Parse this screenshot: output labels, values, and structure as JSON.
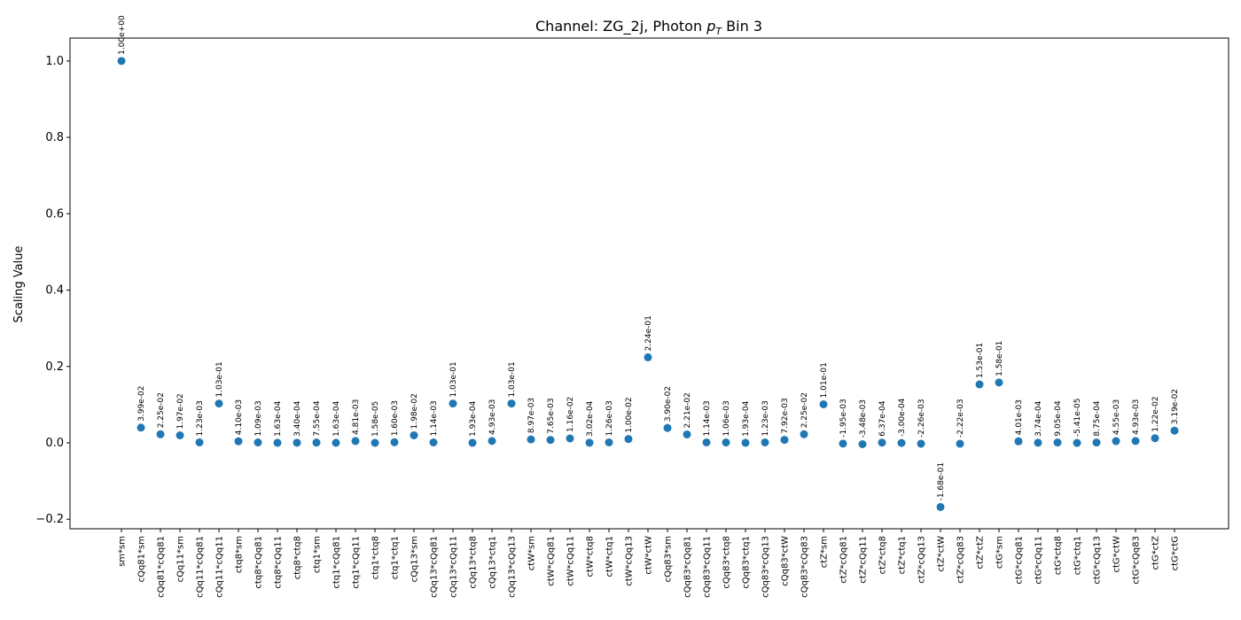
{
  "chart_data": {
    "type": "scatter",
    "title": "Channel: ZG_2j, Photon pT Bin 3",
    "title_parts": {
      "prefix": "Channel: ZG_2j, Photon ",
      "p": "p",
      "sub": "T",
      "suffix": " Bin 3"
    },
    "xlabel": "",
    "ylabel": "Scaling Value",
    "ylim": [
      -0.225,
      1.06
    ],
    "yticks": [
      -0.2,
      0.0,
      0.2,
      0.4,
      0.6,
      0.8,
      1.0
    ],
    "ytick_labels": [
      "−0.2",
      "0.0",
      "0.2",
      "0.4",
      "0.6",
      "0.8",
      "1.0"
    ],
    "grid": false,
    "color": "#1f77b4",
    "categories": [
      "sm*sm",
      "cQq81*sm",
      "cQq81*cQq81",
      "cQq11*sm",
      "cQq11*cQq81",
      "cQq11*cQq11",
      "ctq8*sm",
      "ctq8*cQq81",
      "ctq8*cQq11",
      "ctq8*ctq8",
      "ctq1*sm",
      "ctq1*cQq81",
      "ctq1*cQq11",
      "ctq1*ctq8",
      "ctq1*ctq1",
      "cQq13*sm",
      "cQq13*cQq81",
      "cQq13*cQq11",
      "cQq13*ctq8",
      "cQq13*ctq1",
      "cQq13*cQq13",
      "ctW*sm",
      "ctW*cQq81",
      "ctW*cQq11",
      "ctW*ctq8",
      "ctW*ctq1",
      "ctW*cQq13",
      "ctW*ctW",
      "cQq83*sm",
      "cQq83*cQq81",
      "cQq83*cQq11",
      "cQq83*ctq8",
      "cQq83*ctq1",
      "cQq83*cQq13",
      "cQq83*ctW",
      "cQq83*cQq83",
      "ctZ*sm",
      "ctZ*cQq81",
      "ctZ*cQq11",
      "ctZ*ctq8",
      "ctZ*ctq1",
      "ctZ*cQq13",
      "ctZ*ctW",
      "ctZ*cQq83",
      "ctZ*ctZ",
      "ctG*sm",
      "ctG*cQq81",
      "ctG*cQq11",
      "ctG*ctq8",
      "ctG*ctq1",
      "ctG*cQq13",
      "ctG*ctW",
      "ctG*cQq83",
      "ctG*ctZ",
      "ctG*ctG"
    ],
    "values": [
      1.0,
      0.0399,
      0.0225,
      0.0197,
      0.00123,
      0.103,
      0.0041,
      0.00109,
      0.000163,
      0.00034,
      0.000755,
      0.000163,
      0.00481,
      1.58e-05,
      0.0016,
      0.0198,
      0.00114,
      0.103,
      0.000193,
      0.00493,
      0.103,
      0.00897,
      0.00765,
      0.0116,
      0.000302,
      0.00126,
      0.01,
      0.224,
      0.039,
      0.0221,
      0.00114,
      0.00106,
      0.000193,
      0.00123,
      0.00792,
      0.0225,
      0.101,
      -0.00195,
      -0.00348,
      0.000637,
      -0.0003,
      -0.00226,
      -0.168,
      -0.00222,
      0.153,
      0.158,
      0.00401,
      0.000374,
      0.000905,
      -5.41e-05,
      0.000875,
      0.00455,
      0.00493,
      0.0122,
      0.0319
    ],
    "labels": [
      "1.00e+00",
      "3.99e-02",
      "2.25e-02",
      "1.97e-02",
      "1.23e-03",
      "1.03e-01",
      "4.10e-03",
      "1.09e-03",
      "1.63e-04",
      "3.40e-04",
      "7.55e-04",
      "1.63e-04",
      "4.81e-03",
      "1.58e-05",
      "1.60e-03",
      "1.98e-02",
      "1.14e-03",
      "1.03e-01",
      "1.93e-04",
      "4.93e-03",
      "1.03e-01",
      "8.97e-03",
      "7.65e-03",
      "1.16e-02",
      "3.02e-04",
      "1.26e-03",
      "1.00e-02",
      "2.24e-01",
      "3.90e-02",
      "2.21e-02",
      "1.14e-03",
      "1.06e-03",
      "1.93e-04",
      "1.23e-03",
      "7.92e-03",
      "2.25e-02",
      "1.01e-01",
      "-1.95e-03",
      "-3.48e-03",
      "6.37e-04",
      "-3.00e-04",
      "-2.26e-03",
      "-1.68e-01",
      "-2.22e-03",
      "1.53e-01",
      "1.58e-01",
      "4.01e-03",
      "3.74e-04",
      "9.05e-04",
      "-5.41e-05",
      "8.75e-04",
      "4.55e-03",
      "4.93e-03",
      "1.22e-02",
      "3.19e-02"
    ]
  }
}
